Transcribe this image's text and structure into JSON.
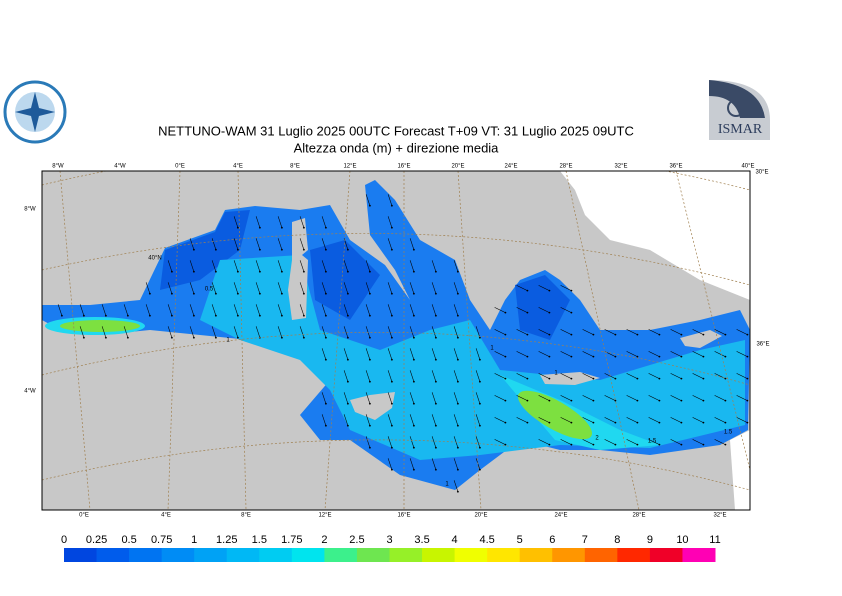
{
  "header": {
    "title": "NETTUNO-WAM  31  Luglio   2025 00UTC Forecast T+09 VT: 31  Luglio   2025 09UTC",
    "subtitle": "Altezza onda (m) + direzione media"
  },
  "logo": {
    "text": "ISMAR"
  },
  "map": {
    "top_labels": [
      "8°W",
      "4°W",
      "0°E",
      "4°E",
      "8°E",
      "12°E",
      "16°E",
      "20°E",
      "24°E",
      "28°E",
      "32°E",
      "36°E",
      "40°E"
    ],
    "corner_label": "30°E",
    "bottom_labels": [
      "0°E",
      "4°E",
      "8°E",
      "12°E",
      "16°E",
      "20°E",
      "24°E",
      "28°E",
      "32°E"
    ],
    "left_labels": [
      "8°W",
      "4°W"
    ],
    "right_label": "36°E",
    "lat_label": "40°N",
    "contour_labels": [
      "0.5",
      "1",
      "1",
      "1",
      "2",
      "1.5",
      "1.5",
      "1"
    ]
  },
  "legend": {
    "labels": [
      "0",
      "0.25",
      "0.5",
      "0.75",
      "1",
      "1.25",
      "1.5",
      "1.75",
      "2",
      "2.5",
      "3",
      "3.5",
      "4",
      "4.5",
      "5",
      "6",
      "7",
      "8",
      "9",
      "10",
      "11"
    ],
    "colors": [
      "#0046e0",
      "#005cec",
      "#0074f2",
      "#008cf5",
      "#00a2f5",
      "#00b8f5",
      "#00ccf2",
      "#00e4ee",
      "#3cf08c",
      "#6ee650",
      "#96f028",
      "#c8f500",
      "#f0ff00",
      "#ffe600",
      "#ffc000",
      "#ff9600",
      "#ff6400",
      "#ff2800",
      "#f00028",
      "#ff00b4"
    ]
  }
}
